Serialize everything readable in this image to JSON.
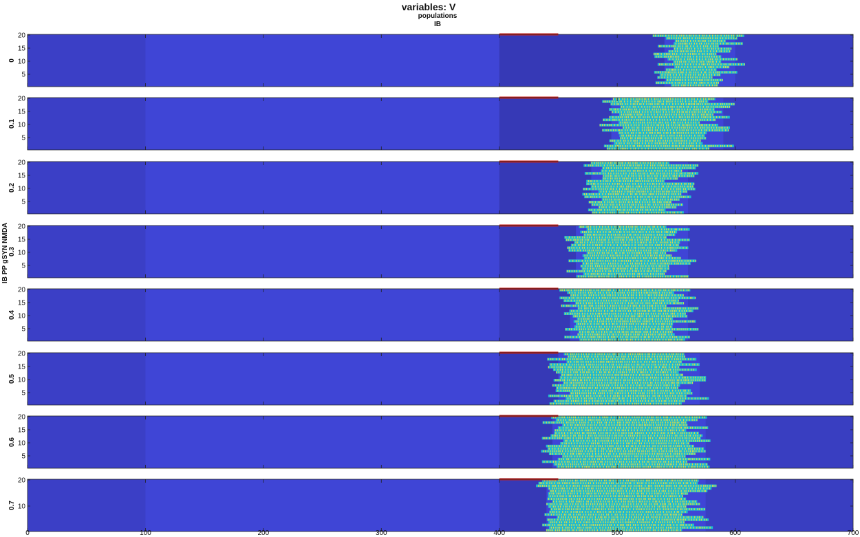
{
  "chart_data": {
    "type": "heatmap",
    "title": "variables: V",
    "subtitle": "populations",
    "subtitle2": "IB",
    "ylabel": "IB PP gSYN NMDA",
    "xlim": [
      0,
      700
    ],
    "x_ticks": [
      0,
      100,
      200,
      300,
      400,
      500,
      600,
      700
    ],
    "ylim": [
      0,
      20
    ],
    "y_ticks": [
      5,
      10,
      15,
      20
    ],
    "colors": {
      "background": "#3f45d6",
      "dark": "#3335a8",
      "active": "#1fbfcf",
      "spike": "#d8d84a",
      "stimulus": "#c81e1e"
    },
    "stimulus": {
      "start": 400,
      "end": 450
    },
    "rows": [
      {
        "label": "0",
        "onset": 540,
        "offset": 595
      },
      {
        "label": "0.1",
        "onset": 495,
        "offset": 585
      },
      {
        "label": "0.2",
        "onset": 478,
        "offset": 555
      },
      {
        "label": "0.3",
        "onset": 465,
        "offset": 555
      },
      {
        "label": "0.4",
        "onset": 460,
        "offset": 555
      },
      {
        "label": "0.5",
        "onset": 450,
        "offset": 565
      },
      {
        "label": "0.6",
        "onset": 445,
        "offset": 570
      },
      {
        "label": "0.7",
        "onset": 440,
        "offset": 570
      }
    ]
  }
}
